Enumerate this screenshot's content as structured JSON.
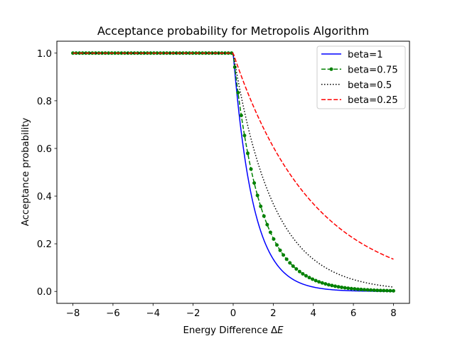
{
  "chart_data": {
    "type": "line",
    "title": "Acceptance probability for Metropolis Algorithm",
    "xlabel_main": "Energy Difference ",
    "xlabel_symbol": "Δ",
    "xlabel_italic": "E",
    "ylabel": "Acceptance probability",
    "xlim": [
      -8.8,
      8.8
    ],
    "ylim": [
      -0.05,
      1.05
    ],
    "x_ticks": [
      -8,
      -6,
      -4,
      -2,
      0,
      2,
      4,
      6,
      8
    ],
    "x_tick_labels": [
      "−8",
      "−6",
      "−4",
      "−2",
      "0",
      "2",
      "4",
      "6",
      "8"
    ],
    "y_ticks": [
      0.0,
      0.2,
      0.4,
      0.6,
      0.8,
      1.0
    ],
    "y_tick_labels": [
      "0.0",
      "0.2",
      "0.4",
      "0.6",
      "0.8",
      "1.0"
    ],
    "grid": false,
    "legend_position": "top-right",
    "function": "p = min(1, exp(-beta * dE))",
    "x_range": [
      -8,
      8
    ],
    "marker_sample_count": 100,
    "series": [
      {
        "name": "beta=1",
        "beta": 1,
        "color": "#0000ff",
        "style": "solid",
        "marker": "none"
      },
      {
        "name": "beta=0.75",
        "beta": 0.75,
        "color": "#008000",
        "style": "dashed",
        "marker": "dot"
      },
      {
        "name": "beta=0.5",
        "beta": 0.5,
        "color": "#000000",
        "style": "dotted",
        "marker": "none"
      },
      {
        "name": "beta=0.25",
        "beta": 0.25,
        "color": "#ff0000",
        "style": "dashed",
        "marker": "none"
      }
    ]
  }
}
